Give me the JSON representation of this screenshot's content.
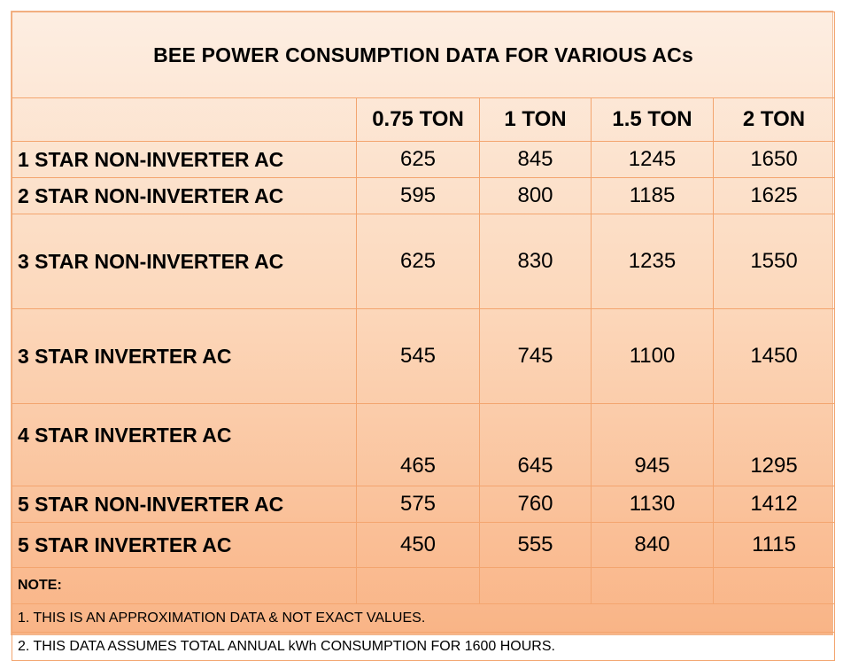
{
  "title": "BEE POWER CONSUMPTION DATA FOR VARIOUS ACs",
  "columns": [
    "",
    "0.75 TON",
    "1 TON",
    "1.5 TON",
    "2 TON"
  ],
  "rows": [
    {
      "label": "1 STAR NON-INVERTER  AC",
      "values": [
        "625",
        "845",
        "1245",
        "1650"
      ]
    },
    {
      "label": "2 STAR NON-INVERTER  AC",
      "values": [
        "595",
        "800",
        "1185",
        "1625"
      ]
    },
    {
      "label": "3 STAR NON-INVERTER  AC",
      "values": [
        "625",
        "830",
        "1235",
        "1550"
      ]
    },
    {
      "label": "3 STAR INVERTER  AC",
      "values": [
        "545",
        "745",
        "1100",
        "1450"
      ]
    },
    {
      "label": "4 STAR INVERTER AC",
      "values": [
        "465",
        "645",
        "945",
        "1295"
      ]
    },
    {
      "label": "5 STAR NON-INVERTER  AC",
      "values": [
        "575",
        "760",
        "1130",
        "1412"
      ]
    },
    {
      "label": "5 STAR INVERTER  AC",
      "values": [
        "450",
        "555",
        "840",
        "1115"
      ]
    }
  ],
  "note": {
    "heading": "NOTE:",
    "lines": [
      "1. THIS IS AN APPROXIMATION DATA & NOT EXACT VALUES.",
      "2. THIS DATA ASSUMES TOTAL ANNUAL kWh CONSUMPTION FOR 1600 HOURS."
    ]
  }
}
